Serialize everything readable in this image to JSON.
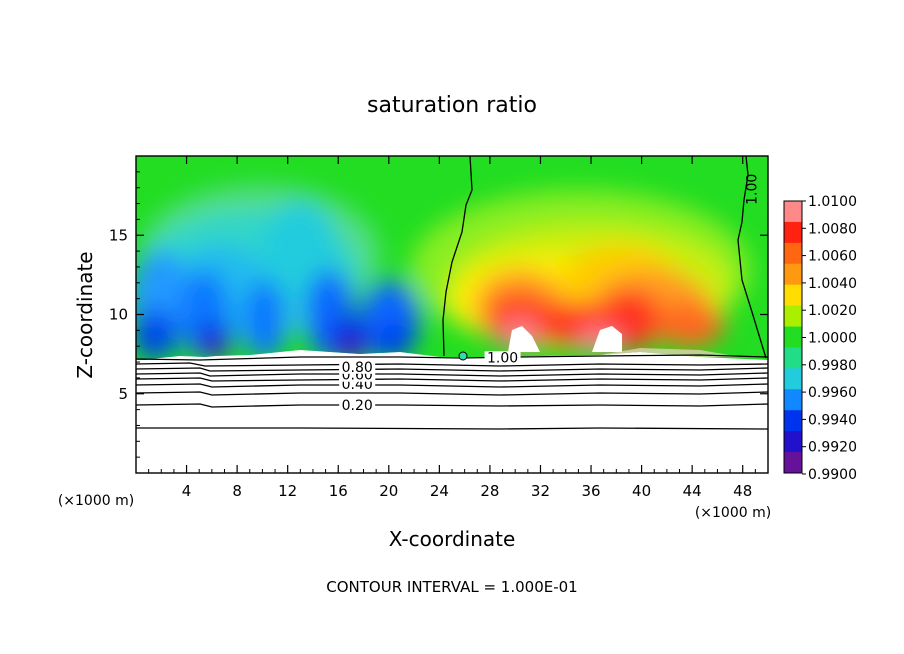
{
  "chart_data": {
    "type": "heatmap",
    "title": "saturation ratio",
    "xlabel": "X-coordinate",
    "ylabel": "Z-coordinate",
    "x_unit": "(×1000 m)",
    "x_unit_right": "(×1000 m)",
    "footnote": "CONTOUR INTERVAL = 1.000E-01",
    "xlim": [
      0,
      50
    ],
    "ylim": [
      0,
      20
    ],
    "x_ticks": [
      4,
      8,
      12,
      16,
      20,
      24,
      28,
      32,
      36,
      40,
      44,
      48
    ],
    "y_ticks": [
      5,
      10,
      15
    ],
    "colorbar": {
      "labels": [
        "1.0100",
        "1.0080",
        "1.0060",
        "1.0040",
        "1.0020",
        "1.0000",
        "0.9980",
        "0.9960",
        "0.9940",
        "0.9920",
        "0.9900"
      ],
      "range": [
        0.99,
        1.01
      ]
    },
    "contour_labels": [
      {
        "text": "0.20",
        "value": 0.2,
        "x": 17.5,
        "y": 4.3
      },
      {
        "text": "0.40",
        "value": 0.4,
        "x": 17.5,
        "y": 5.6
      },
      {
        "text": "0.60",
        "value": 0.6,
        "x": 17.5,
        "y": 6.2
      },
      {
        "text": "0.80",
        "value": 0.8,
        "x": 17.5,
        "y": 6.7
      },
      {
        "text": "1.00",
        "value": 1.0,
        "x": 29.0,
        "y": 7.3
      },
      {
        "text": "1.00",
        "value": 1.0,
        "x": 48.7,
        "y": 17.9
      }
    ]
  }
}
